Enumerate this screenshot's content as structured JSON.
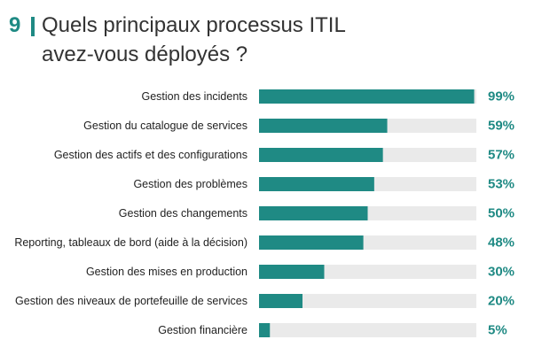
{
  "question": {
    "number": "9",
    "title_line1": "Quels principaux processus ITIL",
    "title_line2": "avez-vous déployés ?"
  },
  "colors": {
    "accent": "#1f8a84",
    "bar_fill": "#1f8a84",
    "bar_track": "#eaeaea",
    "label_text": "#222222",
    "value_text": "#1f8a84"
  },
  "chart_data": {
    "type": "bar",
    "orientation": "horizontal",
    "categories": [
      "Gestion des incidents",
      "Gestion du catalogue de services",
      "Gestion des actifs et des configurations",
      "Gestion des problèmes",
      "Gestion des changements",
      "Reporting, tableaux de bord (aide à la décision)",
      "Gestion  des mises en production",
      "Gestion des niveaux de portefeuille de services",
      "Gestion financière"
    ],
    "values": [
      99,
      59,
      57,
      53,
      50,
      48,
      30,
      20,
      5
    ],
    "value_labels": [
      "99%",
      "59%",
      "57%",
      "53%",
      "50%",
      "48%",
      "30%",
      "20%",
      "5%"
    ],
    "xlim": [
      0,
      100
    ],
    "grid": false,
    "legend": "none"
  }
}
